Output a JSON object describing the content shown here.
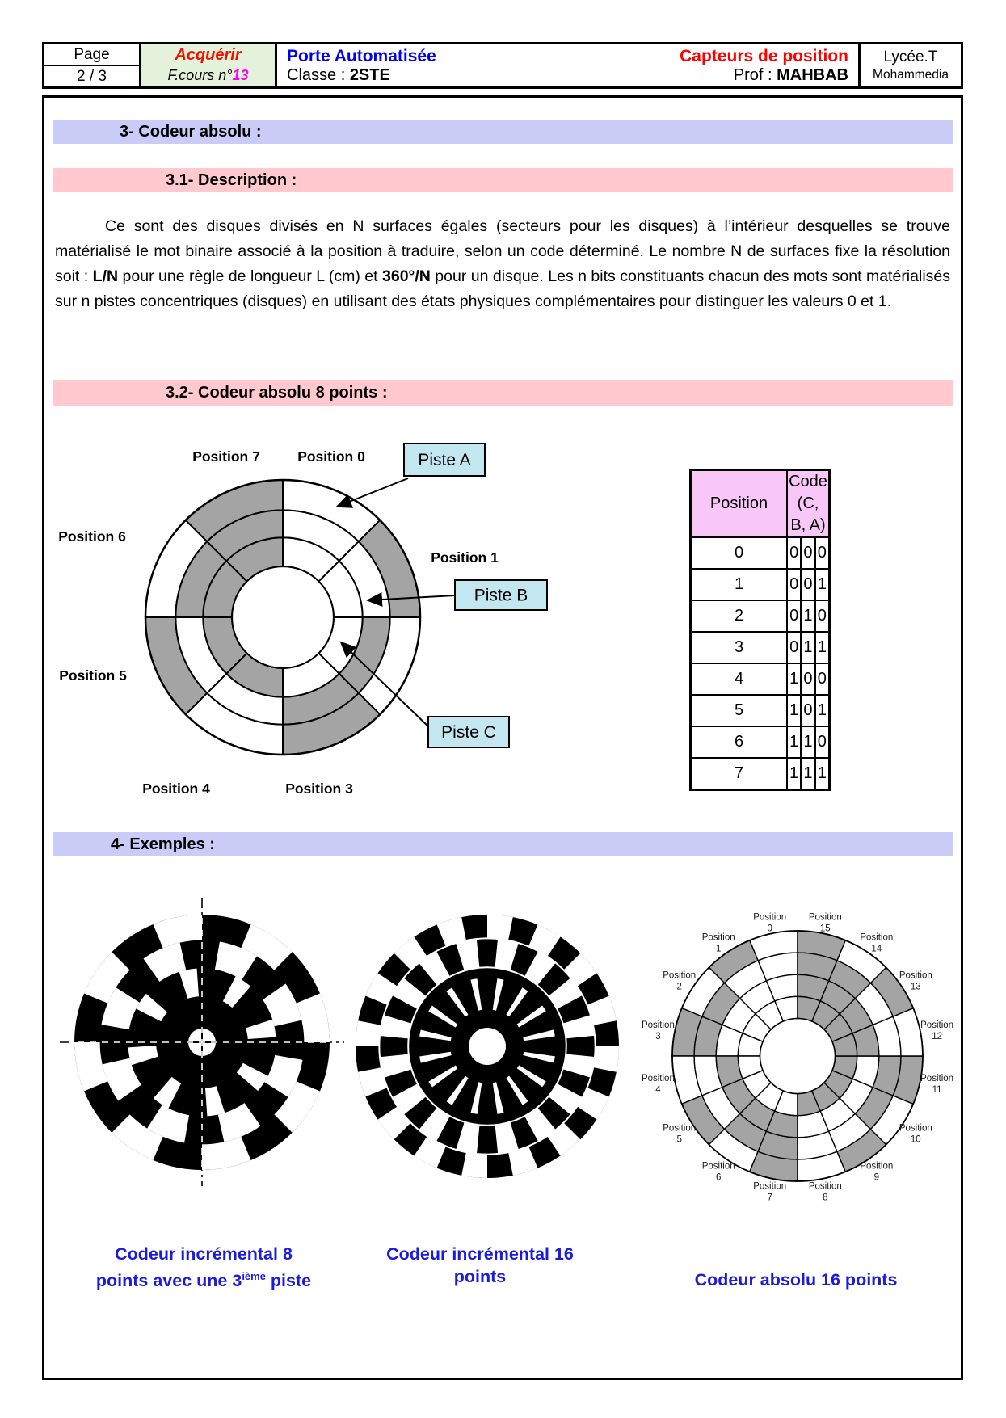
{
  "header": {
    "page_label": "Page",
    "page_value": "2 / 3",
    "activity": "Acquérir",
    "course_prefix": "F.cours n°",
    "course_number": "13",
    "title": "Porte Automatisée",
    "class_label": "Classe : ",
    "class_value": "2STE",
    "subject": "Capteurs de position",
    "prof_label": "Prof : ",
    "prof_value": "MAHBAB",
    "school_line1": "Lycée.T",
    "school_line2": "Mohammedia"
  },
  "sections": {
    "s3": "3- Codeur absolu :",
    "s31": "3.1- Description :",
    "s32": "3.2- Codeur absolu 8 points :",
    "s4": "4- Exemples :"
  },
  "description": {
    "parts": [
      {
        "t": "Ce sont des disques divisés en N surfaces égales  (secteurs pour les disques) à l’intérieur desquelles se trouve matérialisé le mot binaire associé à la position à traduire, selon un code déterminé. Le nombre N de surfaces fixe la  résolution soit : ",
        "b": false
      },
      {
        "t": "L/N",
        "b": true
      },
      {
        "t": " pour une règle de longueur L (cm) et   ",
        "b": false
      },
      {
        "t": "360°/N",
        "b": true
      },
      {
        "t": " pour un disque. Les n bits constituants chacun des mots sont matérialisés sur n pistes concentriques (disques) en utilisant des états physiques complémentaires pour distinguer les valeurs 0 et 1.",
        "b": false
      }
    ]
  },
  "figure8": {
    "position_labels": [
      "Position 0",
      "Position 1",
      "Position 2",
      "Position 3",
      "Position 4",
      "Position 5",
      "Position 6",
      "Position 7"
    ],
    "piste_labels": [
      "Piste A",
      "Piste B",
      "Piste C"
    ],
    "codes": [
      [
        0,
        0,
        0
      ],
      [
        0,
        0,
        1
      ],
      [
        0,
        1,
        0
      ],
      [
        0,
        1,
        1
      ],
      [
        1,
        0,
        0
      ],
      [
        1,
        0,
        1
      ],
      [
        1,
        1,
        0
      ],
      [
        1,
        1,
        1
      ]
    ]
  },
  "code_table": {
    "position_header": "Position",
    "code_header": "Code",
    "code_subheader": "(C, B, A)",
    "rows": [
      {
        "position": "0",
        "bits": [
          "0",
          "0",
          "0"
        ]
      },
      {
        "position": "1",
        "bits": [
          "0",
          "0",
          "1"
        ]
      },
      {
        "position": "2",
        "bits": [
          "0",
          "1",
          "0"
        ]
      },
      {
        "position": "3",
        "bits": [
          "0",
          "1",
          "1"
        ]
      },
      {
        "position": "4",
        "bits": [
          "1",
          "0",
          "0"
        ]
      },
      {
        "position": "5",
        "bits": [
          "1",
          "0",
          "1"
        ]
      },
      {
        "position": "6",
        "bits": [
          "1",
          "1",
          "0"
        ]
      },
      {
        "position": "7",
        "bits": [
          "1",
          "1",
          "1"
        ]
      }
    ]
  },
  "examples": {
    "disk1_slots": 8,
    "disk2_slots": 16,
    "disk3_positions_count": 16,
    "disk1_caption_line1": "Codeur incrémental 8",
    "disk1_caption_line2_pre": "points avec une 3",
    "disk1_caption_sup": "ième",
    "disk1_caption_line2_post": " piste",
    "disk2_caption_line1": "Codeur incrémental 16",
    "disk2_caption_line2": "points",
    "disk3_caption": "Codeur absolu 16 points",
    "disk3_label_word": "Position",
    "disk3_positions": [
      "0",
      "1",
      "2",
      "3",
      "4",
      "5",
      "6",
      "7",
      "8",
      "9",
      "10",
      "11",
      "12",
      "13",
      "14",
      "15"
    ]
  },
  "colors": {
    "bar_blue": "#c9ccf7",
    "bar_pink": "#ffc9cf",
    "header_green": "#e4f2dc",
    "table_header_pink": "#f9c7f7",
    "piste_box_cyan": "#c3e7f1",
    "encoder_gray": "#a4a4a4",
    "caption_blue": "#1b1bdd",
    "title_blue": "#0000ee",
    "subject_red": "#ff0000",
    "number_magenta": "#ff00ff",
    "activity_red": "#ee1100"
  }
}
